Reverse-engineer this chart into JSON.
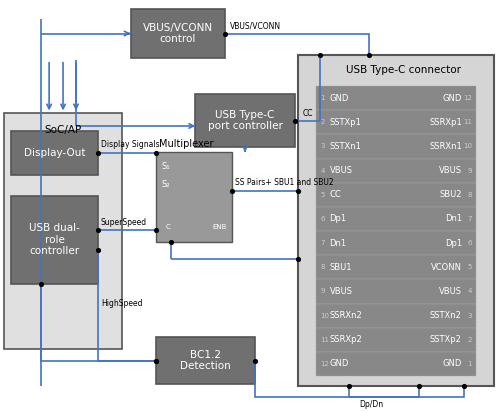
{
  "bg_color": "#ffffff",
  "box_color": "#707070",
  "box_edge": "#555555",
  "connector_bg": "#d8d8d8",
  "connector_inner": "#909090",
  "blue": "#4472c4",
  "black": "#000000",
  "pin_left": [
    "GND",
    "SSTXp1",
    "SSTXn1",
    "VBUS",
    "CC",
    "Dp1",
    "Dn1",
    "SBU1",
    "VBUS",
    "SSRXn2",
    "SSRXp2",
    "GND"
  ],
  "pin_right": [
    "GND",
    "SSRXp1",
    "SSRXn1",
    "VBUS",
    "SBU2",
    "Dn1",
    "Dp1",
    "VCONN",
    "VBUS",
    "SSTXn2",
    "SSTXp2",
    "GND"
  ],
  "pin_nums_left": [
    "1",
    "2",
    "3",
    "4",
    "5",
    "6",
    "7",
    "8",
    "9",
    "10",
    "11",
    "12"
  ],
  "pin_nums_right": [
    "12",
    "11",
    "10",
    "9",
    "8",
    "7",
    "6",
    "5",
    "4",
    "3",
    "2",
    "1"
  ]
}
